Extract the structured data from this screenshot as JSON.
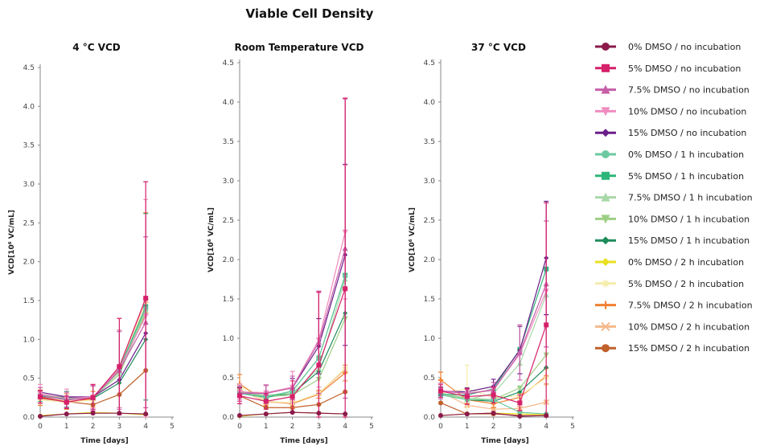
{
  "chart_data": {
    "title": "Viable Cell Density",
    "type": "line",
    "legend_placement": "right",
    "grid": false,
    "series_meta": [
      {
        "name": "0% DMSO / no incubation",
        "color": "#8b1a4a",
        "marker": "circle"
      },
      {
        "name": "5% DMSO / no incubation",
        "color": "#d6206a",
        "marker": "square"
      },
      {
        "name": "7.5% DMSO / no incubation",
        "color": "#c65fa8",
        "marker": "triangle"
      },
      {
        "name": "10% DMSO / no incubation",
        "color": "#f08cbf",
        "marker": "triangle-down"
      },
      {
        "name": "15% DMSO / no incubation",
        "color": "#6a1f8a",
        "marker": "diamond"
      },
      {
        "name": "0% DMSO / 1 h incubation",
        "color": "#6cc8a0",
        "marker": "circle"
      },
      {
        "name": "5% DMSO / 1 h incubation",
        "color": "#2eb57a",
        "marker": "square"
      },
      {
        "name": "7.5% DMSO / 1 h incubation",
        "color": "#a8d8a8",
        "marker": "triangle"
      },
      {
        "name": "10% DMSO / 1 h incubation",
        "color": "#9ccf84",
        "marker": "triangle-down"
      },
      {
        "name": "15% DMSO / 1 h incubation",
        "color": "#1f8c5c",
        "marker": "diamond"
      },
      {
        "name": "0% DMSO / 2 h incubation",
        "color": "#e8e020",
        "marker": "diamond"
      },
      {
        "name": "5% DMSO / 2 h incubation",
        "color": "#f4ecaa",
        "marker": "star"
      },
      {
        "name": "7.5% DMSO / 2 h incubation",
        "color": "#f08030",
        "marker": "plus"
      },
      {
        "name": "10% DMSO / 2 h incubation",
        "color": "#f5b88a",
        "marker": "x"
      },
      {
        "name": "15% DMSO / 2 h incubation",
        "color": "#c0602a",
        "marker": "circle"
      }
    ],
    "panels": [
      {
        "title": "4 °C VCD",
        "xlabel": "Time [days]",
        "ylabel": "VCD[10⁶ VC/mL]",
        "xlim": [
          0,
          5
        ],
        "ylim": [
          0,
          4.5
        ],
        "xticks": [
          "0",
          "1",
          "2",
          "3",
          "4",
          "5"
        ],
        "yticks": [
          "0.0",
          "0.5",
          "1.0",
          "1.5",
          "2.0",
          "2.5",
          "3.0",
          "3.5",
          "4.0",
          "4.5"
        ],
        "x": [
          0,
          1,
          2,
          3,
          4
        ],
        "series": [
          {
            "values": [
              0.01,
              0.04,
              0.05,
              0.05,
              0.04
            ]
          },
          {
            "values": [
              0.26,
              0.19,
              0.25,
              0.65,
              1.53
            ],
            "error": [
              0.08,
              0.08,
              0.17,
              0.62,
              1.5
            ]
          },
          {
            "values": [
              0.28,
              0.22,
              0.25,
              0.6,
              1.22
            ],
            "error": [
              0.1,
              0.1,
              0.15,
              0.5,
              1.1
            ]
          },
          {
            "values": [
              0.3,
              0.24,
              0.26,
              0.62,
              1.3
            ],
            "error": [
              0.12,
              0.12,
              0.15,
              0.5,
              1.5
            ]
          },
          {
            "values": [
              0.32,
              0.26,
              0.26,
              0.48,
              1.08
            ]
          },
          {
            "values": [
              0.28,
              0.24,
              0.25,
              0.6,
              1.4
            ]
          },
          {
            "values": [
              0.27,
              0.23,
              0.25,
              0.62,
              1.42
            ],
            "error": [
              0.07,
              0.1,
              0.15,
              0.5,
              1.2
            ]
          },
          {
            "values": [
              0.29,
              0.23,
              0.25,
              0.58,
              1.38
            ]
          },
          {
            "values": [
              0.3,
              0.24,
              0.25,
              0.55,
              1.35
            ]
          },
          {
            "values": [
              0.29,
              0.25,
              0.24,
              0.44,
              1.0
            ]
          },
          {
            "values": [
              0.02,
              0.04,
              0.06,
              0.05,
              0.03
            ]
          },
          {
            "values": [
              0.22,
              0.19,
              0.22,
              0.6,
              1.45
            ]
          },
          {
            "values": [
              0.25,
              0.2,
              0.23,
              0.62,
              1.33
            ],
            "error": [
              0.1,
              0.1,
              0.1,
              0.5,
              1.3
            ]
          },
          {
            "values": [
              0.27,
              0.2,
              0.24,
              0.64,
              1.5
            ]
          },
          {
            "values": [
              0.24,
              0.2,
              0.16,
              0.29,
              0.6
            ]
          }
        ]
      },
      {
        "title": "Room Temperature VCD",
        "xlabel": "Time [days]",
        "ylabel": "VCD[10⁶ VC/mL]",
        "xlim": [
          0,
          5
        ],
        "ylim": [
          0,
          4.5
        ],
        "xticks": [
          "0",
          "1",
          "2",
          "3",
          "4",
          "5"
        ],
        "yticks": [
          "0.0",
          "0.5",
          "1.0",
          "1.5",
          "2.0",
          "2.5",
          "3.0",
          "3.5",
          "4.0",
          "4.5"
        ],
        "x": [
          0,
          1,
          2,
          3,
          4
        ],
        "series": [
          {
            "values": [
              0.02,
              0.04,
              0.06,
              0.05,
              0.04
            ]
          },
          {
            "values": [
              0.27,
              0.2,
              0.26,
              0.66,
              1.63
            ],
            "error": [
              0.1,
              0.1,
              0.2,
              0.93,
              2.42
            ]
          },
          {
            "values": [
              0.3,
              0.3,
              0.37,
              0.95,
              2.14
            ],
            "error": [
              0.1,
              0.1,
              0.15,
              0.65,
              1.9
            ]
          },
          {
            "values": [
              0.32,
              0.31,
              0.38,
              0.98,
              2.35
            ],
            "error": [
              0.1,
              0.1,
              0.2,
              0.6,
              0.85
            ]
          },
          {
            "values": [
              0.3,
              0.31,
              0.37,
              0.9,
              2.06
            ],
            "error": [
              0.08,
              0.1,
              0.12,
              0.35,
              1.15
            ]
          },
          {
            "values": [
              0.3,
              0.26,
              0.33,
              0.75,
              1.79
            ]
          },
          {
            "values": [
              0.3,
              0.25,
              0.33,
              0.75,
              1.8
            ]
          },
          {
            "values": [
              0.32,
              0.28,
              0.3,
              0.62,
              1.75
            ]
          },
          {
            "values": [
              0.33,
              0.26,
              0.28,
              0.48,
              1.25
            ]
          },
          {
            "values": [
              0.31,
              0.25,
              0.3,
              0.58,
              1.32
            ]
          },
          {
            "values": [
              0.01,
              0.04,
              0.06,
              0.05,
              0.04
            ]
          },
          {
            "values": [
              0.4,
              0.2,
              0.18,
              0.3,
              0.62
            ]
          },
          {
            "values": [
              0.42,
              0.2,
              0.17,
              0.29,
              0.56
            ],
            "error": [
              0.12,
              0.05,
              0.05,
              0.05,
              0.1
            ]
          },
          {
            "values": [
              0.35,
              0.19,
              0.18,
              0.3,
              0.6
            ]
          },
          {
            "values": [
              0.27,
              0.12,
              0.12,
              0.16,
              0.32
            ]
          }
        ]
      },
      {
        "title": "37 °C VCD",
        "xlabel": "Time [days]",
        "ylabel": "VCD[10⁶ VC/mL]",
        "xlim": [
          0,
          5
        ],
        "ylim": [
          0,
          4.5
        ],
        "xticks": [
          "0",
          "1",
          "2",
          "3",
          "4",
          "5"
        ],
        "yticks": [
          "0.0",
          "0.5",
          "1.0",
          "1.5",
          "2.0",
          "2.5",
          "3.0",
          "3.5",
          "4.0",
          "4.5"
        ],
        "x": [
          0,
          1,
          2,
          3,
          4
        ],
        "series": [
          {
            "values": [
              0.02,
              0.04,
              0.05,
              0.01,
              0.02
            ]
          },
          {
            "values": [
              0.33,
              0.26,
              0.28,
              0.18,
              1.17
            ],
            "error": [
              0.08,
              0.1,
              0.1,
              0.1,
              1.55
            ]
          },
          {
            "values": [
              0.33,
              0.3,
              0.34,
              0.82,
              1.69
            ],
            "error": [
              0.1,
              0.05,
              0.1,
              0.35,
              0.8
            ]
          },
          {
            "values": [
              0.34,
              0.3,
              0.35,
              0.8,
              1.6
            ]
          },
          {
            "values": [
              0.33,
              0.32,
              0.39,
              0.85,
              2.02
            ],
            "error": [
              0.05,
              0.05,
              0.09,
              0.3,
              0.72
            ]
          },
          {
            "values": [
              0.28,
              0.22,
              0.22,
              0.06,
              0.04
            ]
          },
          {
            "values": [
              0.29,
              0.28,
              0.36,
              0.86,
              1.88
            ]
          },
          {
            "values": [
              0.3,
              0.22,
              0.3,
              0.68,
              1.55
            ]
          },
          {
            "values": [
              0.3,
              0.24,
              0.22,
              0.37,
              0.79
            ]
          },
          {
            "values": [
              0.3,
              0.22,
              0.2,
              0.32,
              0.63
            ]
          },
          {
            "values": [
              0.02,
              0.04,
              0.05,
              0.04,
              0.03
            ]
          },
          {
            "values": [
              0.3,
              0.36,
              0.25,
              0.27,
              0.5
            ],
            "error": [
              0.05,
              0.3,
              0.05,
              0.05,
              0.1
            ]
          },
          {
            "values": [
              0.47,
              0.22,
              0.17,
              0.25,
              0.52
            ],
            "error": [
              0.1,
              0.05,
              0.05,
              0.05,
              0.1
            ]
          },
          {
            "values": [
              0.32,
              0.15,
              0.1,
              0.11,
              0.19
            ]
          },
          {
            "values": [
              0.18,
              0.04,
              0.04,
              0.02,
              0.02
            ]
          }
        ]
      }
    ]
  }
}
